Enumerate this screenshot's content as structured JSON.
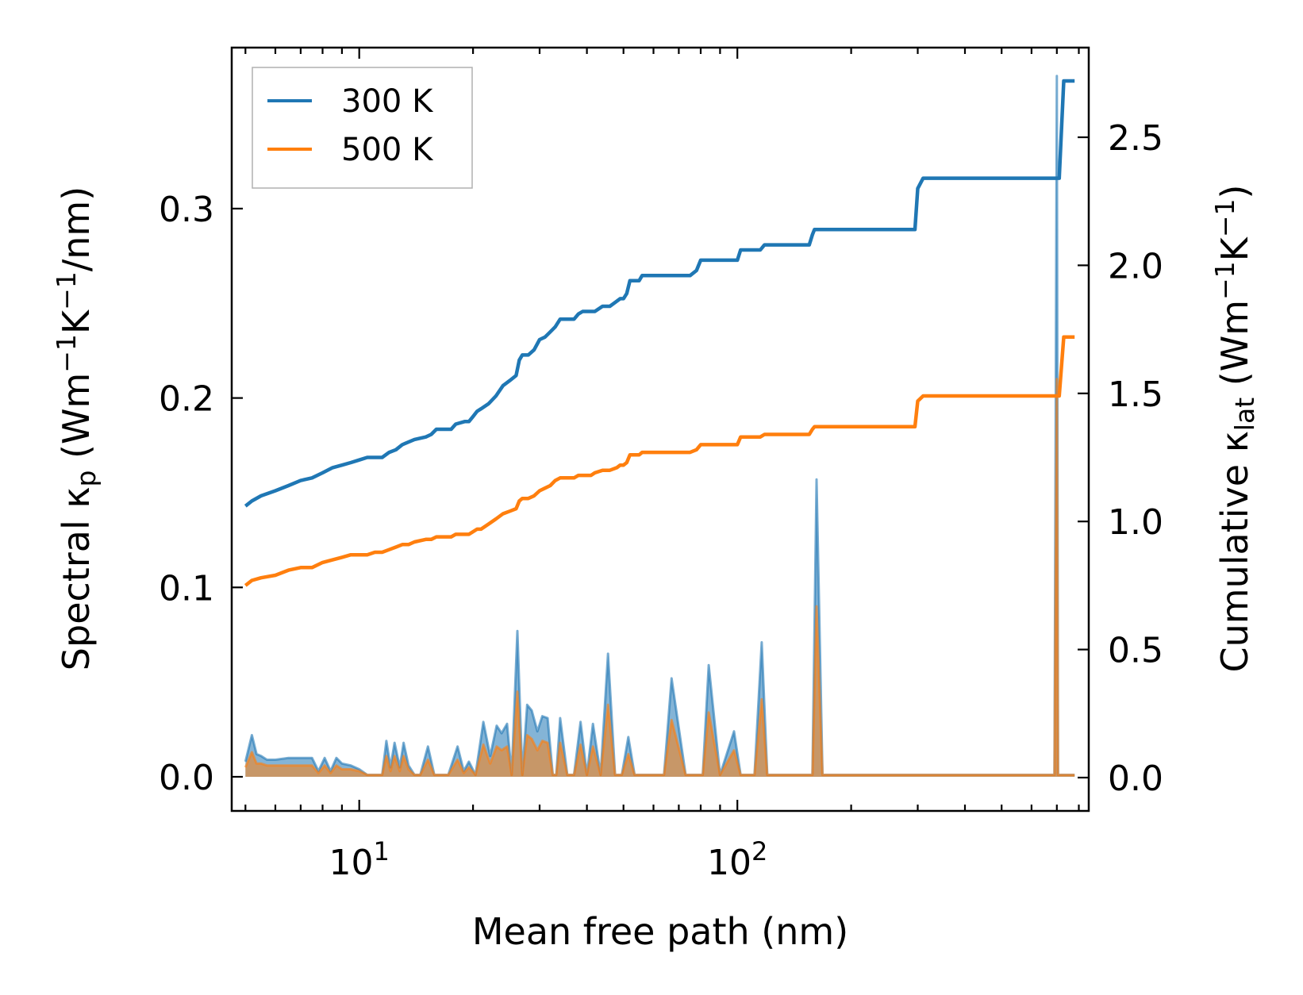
{
  "chart_data": {
    "type": "line",
    "xscale": "log",
    "xlim": [
      4.6,
      850
    ],
    "xlabel": "Mean free path (nm)",
    "x_tick_labels": [
      {
        "value": 10,
        "base": "10",
        "exp": "1"
      },
      {
        "value": 100,
        "base": "10",
        "exp": "2"
      }
    ],
    "left_axis": {
      "ylabel_prefix": "Spectral κ",
      "ylabel_subscript": "p",
      "ylabel_suffix": " (Wm",
      "ylabel_exp1": "−1",
      "ylabel_mid": "K",
      "ylabel_exp2": "−1",
      "ylabel_end": "/nm)",
      "ylim": [
        -0.018,
        0.385
      ],
      "ticks": [
        {
          "value": 0.0,
          "label": "0.0"
        },
        {
          "value": 0.1,
          "label": "0.1"
        },
        {
          "value": 0.2,
          "label": "0.2"
        },
        {
          "value": 0.3,
          "label": "0.3"
        }
      ]
    },
    "right_axis": {
      "ylabel_prefix": "Cumulative κ",
      "ylabel_subscript": "lat",
      "ylabel_suffix": " (Wm",
      "ylabel_exp1": "−1",
      "ylabel_mid": "K",
      "ylabel_exp2": "−1",
      "ylabel_end": ")",
      "ylim": [
        -0.13,
        2.85
      ],
      "ticks": [
        {
          "value": 0.0,
          "label": "0.0"
        },
        {
          "value": 0.5,
          "label": "0.5"
        },
        {
          "value": 1.0,
          "label": "1.0"
        },
        {
          "value": 1.5,
          "label": "1.5"
        },
        {
          "value": 2.0,
          "label": "2.0"
        },
        {
          "value": 2.5,
          "label": "2.5"
        }
      ]
    },
    "legend": {
      "position": "top-left",
      "entries": [
        {
          "label": "300 K",
          "color": "#1f77b4"
        },
        {
          "label": "500 K",
          "color": "#ff7f0e"
        }
      ]
    },
    "series": [
      {
        "name": "300 K cumulative",
        "axis": "right",
        "color": "#1f77b4",
        "x": [
          5,
          5.2,
          5.5,
          6,
          6.5,
          7,
          7.5,
          8,
          8.5,
          9,
          9.5,
          10,
          10.5,
          11,
          11.5,
          12,
          12.5,
          13,
          13.5,
          14,
          15,
          15.5,
          16,
          17,
          17.5,
          18,
          19,
          19.5,
          20,
          20.5,
          21,
          22,
          23,
          24,
          25,
          26,
          26.5,
          27,
          28,
          29,
          30,
          31,
          32,
          33,
          34,
          35,
          36,
          37,
          38,
          39,
          40,
          41,
          42,
          44,
          45,
          46,
          48,
          49,
          50,
          51,
          52,
          53,
          55,
          56,
          58,
          60,
          62,
          65,
          70,
          75,
          78,
          80,
          82,
          85,
          95,
          100,
          102,
          105,
          110,
          115,
          118,
          120,
          130,
          140,
          155,
          158,
          160,
          165,
          200,
          250,
          295,
          300,
          310,
          500,
          700,
          710,
          730,
          760,
          780
        ],
        "y": [
          1.06,
          1.08,
          1.1,
          1.12,
          1.14,
          1.16,
          1.17,
          1.19,
          1.21,
          1.22,
          1.23,
          1.24,
          1.25,
          1.25,
          1.25,
          1.27,
          1.28,
          1.3,
          1.31,
          1.32,
          1.33,
          1.34,
          1.36,
          1.36,
          1.36,
          1.38,
          1.39,
          1.39,
          1.41,
          1.43,
          1.44,
          1.46,
          1.49,
          1.53,
          1.55,
          1.57,
          1.63,
          1.65,
          1.65,
          1.67,
          1.71,
          1.72,
          1.74,
          1.76,
          1.79,
          1.79,
          1.79,
          1.79,
          1.81,
          1.82,
          1.82,
          1.82,
          1.82,
          1.84,
          1.84,
          1.84,
          1.86,
          1.87,
          1.87,
          1.89,
          1.94,
          1.94,
          1.94,
          1.96,
          1.96,
          1.96,
          1.96,
          1.96,
          1.96,
          1.96,
          1.98,
          2.02,
          2.02,
          2.02,
          2.02,
          2.02,
          2.06,
          2.06,
          2.06,
          2.06,
          2.08,
          2.08,
          2.08,
          2.08,
          2.08,
          2.12,
          2.14,
          2.14,
          2.14,
          2.14,
          2.14,
          2.3,
          2.34,
          2.34,
          2.34,
          2.34,
          2.72,
          2.72,
          2.72
        ]
      },
      {
        "name": "500 K cumulative",
        "axis": "right",
        "color": "#ff7f0e",
        "x": [
          5,
          5.2,
          5.5,
          6,
          6.5,
          7,
          7.5,
          8,
          8.5,
          9,
          9.5,
          10,
          10.5,
          11,
          11.5,
          12,
          12.5,
          13,
          13.5,
          14,
          15,
          15.5,
          16,
          17,
          17.5,
          18,
          19,
          19.5,
          20,
          20.5,
          21,
          22,
          23,
          24,
          25,
          26,
          26.5,
          27,
          28,
          29,
          30,
          31,
          32,
          33,
          34,
          35,
          36,
          37,
          38,
          39,
          40,
          41,
          42,
          44,
          45,
          46,
          48,
          49,
          50,
          51,
          52,
          53,
          55,
          56,
          58,
          60,
          62,
          65,
          70,
          75,
          78,
          80,
          82,
          85,
          95,
          100,
          102,
          105,
          110,
          115,
          118,
          120,
          130,
          140,
          155,
          158,
          160,
          165,
          200,
          250,
          295,
          300,
          310,
          500,
          700,
          710,
          730,
          760,
          780
        ],
        "y": [
          0.75,
          0.77,
          0.78,
          0.79,
          0.81,
          0.82,
          0.82,
          0.84,
          0.85,
          0.86,
          0.87,
          0.87,
          0.87,
          0.88,
          0.88,
          0.89,
          0.9,
          0.91,
          0.91,
          0.92,
          0.93,
          0.93,
          0.94,
          0.94,
          0.94,
          0.95,
          0.95,
          0.95,
          0.96,
          0.97,
          0.97,
          0.99,
          1.01,
          1.03,
          1.04,
          1.05,
          1.08,
          1.09,
          1.09,
          1.1,
          1.12,
          1.13,
          1.14,
          1.16,
          1.17,
          1.17,
          1.17,
          1.17,
          1.18,
          1.18,
          1.18,
          1.18,
          1.19,
          1.2,
          1.2,
          1.2,
          1.21,
          1.22,
          1.22,
          1.23,
          1.26,
          1.26,
          1.26,
          1.27,
          1.27,
          1.27,
          1.27,
          1.27,
          1.27,
          1.27,
          1.28,
          1.3,
          1.3,
          1.3,
          1.3,
          1.3,
          1.33,
          1.33,
          1.33,
          1.33,
          1.34,
          1.34,
          1.34,
          1.34,
          1.34,
          1.36,
          1.37,
          1.37,
          1.37,
          1.37,
          1.37,
          1.47,
          1.49,
          1.49,
          1.49,
          1.49,
          1.72,
          1.72,
          1.72
        ]
      },
      {
        "name": "300 K spectral",
        "axis": "left",
        "type": "area",
        "color": "#1f77b4",
        "x": [
          5,
          5.2,
          5.35,
          5.5,
          5.7,
          6,
          6.5,
          7,
          7.5,
          7.8,
          8.1,
          8.4,
          8.7,
          9,
          9.5,
          10,
          10.5,
          11,
          11.5,
          11.8,
          12.1,
          12.4,
          12.8,
          13.1,
          13.5,
          14,
          14.5,
          15.2,
          15.8,
          16.4,
          17.2,
          18.2,
          18.9,
          19.5,
          20.3,
          21.3,
          22.2,
          23.1,
          23.8,
          24.6,
          25.3,
          26.2,
          27,
          27.8,
          28.6,
          29.6,
          30.5,
          31.5,
          32.5,
          33.2,
          34,
          35.5,
          37,
          38.5,
          40,
          41.5,
          43.5,
          45.5,
          47.5,
          49.5,
          51.5,
          53.5,
          55.5,
          58,
          61,
          64,
          67,
          73,
          78,
          81,
          84,
          90,
          98,
          102,
          106,
          111,
          116,
          120,
          125,
          140,
          154,
          158,
          162,
          168,
          200,
          270,
          290,
          300,
          310,
          330,
          500,
          690,
          700,
          705,
          715,
          725,
          740,
          760,
          780
        ],
        "y": [
          0.008,
          0.022,
          0.012,
          0.011,
          0.009,
          0.009,
          0.01,
          0.01,
          0.01,
          0.003,
          0.01,
          0.003,
          0.01,
          0.007,
          0.006,
          0.004,
          0.001,
          0.001,
          0.001,
          0.019,
          0.005,
          0.018,
          0.005,
          0.018,
          0.006,
          0.001,
          0.001,
          0.016,
          0.001,
          0.001,
          0.001,
          0.016,
          0.003,
          0.008,
          0.001,
          0.029,
          0.011,
          0.027,
          0.023,
          0.028,
          0.001,
          0.077,
          0.001,
          0.038,
          0.035,
          0.024,
          0.032,
          0.031,
          0.001,
          0.001,
          0.031,
          0.001,
          0.001,
          0.029,
          0.001,
          0.028,
          0.001,
          0.065,
          0.001,
          0.001,
          0.021,
          0.001,
          0.001,
          0.001,
          0.001,
          0.001,
          0.052,
          0.001,
          0.001,
          0.001,
          0.059,
          0.001,
          0.024,
          0.001,
          0.001,
          0.001,
          0.071,
          0.001,
          0.001,
          0.001,
          0.001,
          0.001,
          0.157,
          0.001,
          0.001,
          0.001,
          0.001,
          0.001,
          0.001,
          0.001,
          0.001,
          0.001,
          0.37,
          0.001,
          0.001,
          0.001,
          0.001,
          0.001,
          0.001
        ]
      },
      {
        "name": "500 K spectral",
        "axis": "left",
        "type": "area",
        "color": "#ff7f0e",
        "x": [
          5,
          5.2,
          5.35,
          5.5,
          5.7,
          6,
          6.5,
          7,
          7.5,
          7.8,
          8.1,
          8.4,
          8.7,
          9,
          9.5,
          10,
          10.5,
          11,
          11.5,
          11.8,
          12.1,
          12.4,
          12.8,
          13.1,
          13.5,
          14,
          14.5,
          15.2,
          15.8,
          16.4,
          17.2,
          18.2,
          18.9,
          19.5,
          20.3,
          21.3,
          22.2,
          23.1,
          23.8,
          24.6,
          25.3,
          26.2,
          27,
          27.8,
          28.6,
          29.6,
          30.5,
          31.5,
          32.5,
          33.2,
          34,
          35.5,
          37,
          38.5,
          40,
          41.5,
          43.5,
          45.5,
          47.5,
          49.5,
          51.5,
          53.5,
          55.5,
          58,
          61,
          64,
          67,
          73,
          78,
          81,
          84,
          90,
          98,
          102,
          106,
          111,
          116,
          120,
          125,
          140,
          154,
          158,
          162,
          168,
          200,
          270,
          290,
          300,
          310,
          330,
          500,
          690,
          700,
          705,
          715,
          725,
          740,
          760,
          780
        ],
        "y": [
          0.005,
          0.013,
          0.007,
          0.007,
          0.006,
          0.006,
          0.006,
          0.006,
          0.006,
          0.002,
          0.006,
          0.002,
          0.006,
          0.004,
          0.004,
          0.003,
          0.001,
          0.001,
          0.001,
          0.011,
          0.003,
          0.011,
          0.003,
          0.011,
          0.004,
          0.001,
          0.001,
          0.009,
          0.001,
          0.001,
          0.001,
          0.009,
          0.002,
          0.005,
          0.001,
          0.017,
          0.007,
          0.016,
          0.014,
          0.016,
          0.001,
          0.045,
          0.001,
          0.022,
          0.02,
          0.014,
          0.019,
          0.018,
          0.001,
          0.001,
          0.018,
          0.001,
          0.001,
          0.017,
          0.001,
          0.016,
          0.001,
          0.038,
          0.001,
          0.001,
          0.012,
          0.001,
          0.001,
          0.001,
          0.001,
          0.001,
          0.03,
          0.001,
          0.001,
          0.001,
          0.034,
          0.001,
          0.014,
          0.001,
          0.001,
          0.001,
          0.041,
          0.001,
          0.001,
          0.001,
          0.001,
          0.001,
          0.09,
          0.001,
          0.001,
          0.001,
          0.001,
          0.001,
          0.001,
          0.001,
          0.001,
          0.001,
          0.21,
          0.001,
          0.001,
          0.001,
          0.001,
          0.001,
          0.001
        ]
      }
    ]
  }
}
